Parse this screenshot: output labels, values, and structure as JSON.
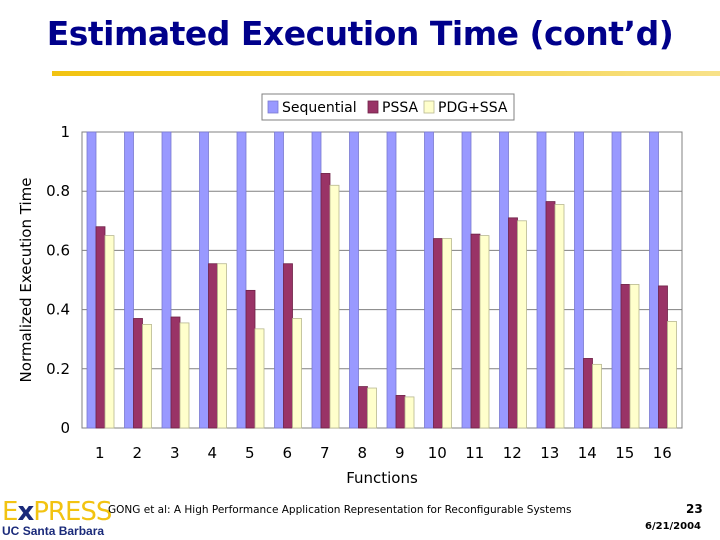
{
  "slide": {
    "title": "Estimated Execution Time (cont’d)",
    "footer_citation": "GONG et al: A High Performance Application Representation for Reconfigurable Systems",
    "page_number": "23",
    "date": "6/21/2004",
    "logo_e": "E",
    "logo_x": "x",
    "logo_press": "PRESS",
    "logo_uc": "UC",
    "logo_campus": "Santa Barbara"
  },
  "colors": {
    "sequential": "#9999ff",
    "pssa": "#993366",
    "pdgssa": "#ffffcc",
    "title": "#00008b",
    "accent": "#f2c311"
  },
  "chart_data": {
    "type": "bar",
    "title": "",
    "xlabel": "Functions",
    "ylabel": "Normalized Execution Time",
    "ylim": [
      0,
      1
    ],
    "yticks": [
      "0",
      "0.2",
      "0.4",
      "0.6",
      "0.8",
      "1"
    ],
    "categories": [
      "1",
      "2",
      "3",
      "4",
      "5",
      "6",
      "7",
      "8",
      "9",
      "10",
      "11",
      "12",
      "13",
      "14",
      "15",
      "16"
    ],
    "legend_position": "top",
    "series": [
      {
        "name": "Sequential",
        "values": [
          1,
          1,
          1,
          1,
          1,
          1,
          1,
          1,
          1,
          1,
          1,
          1,
          1,
          1,
          1,
          1
        ]
      },
      {
        "name": "PSSA",
        "values": [
          0.68,
          0.37,
          0.375,
          0.555,
          0.465,
          0.555,
          0.86,
          0.14,
          0.11,
          0.64,
          0.655,
          0.71,
          0.765,
          0.235,
          0.485,
          0.48
        ]
      },
      {
        "name": "PDG+SSA",
        "values": [
          0.65,
          0.35,
          0.355,
          0.555,
          0.335,
          0.37,
          0.82,
          0.135,
          0.105,
          0.64,
          0.65,
          0.7,
          0.755,
          0.215,
          0.485,
          0.36
        ]
      }
    ]
  }
}
